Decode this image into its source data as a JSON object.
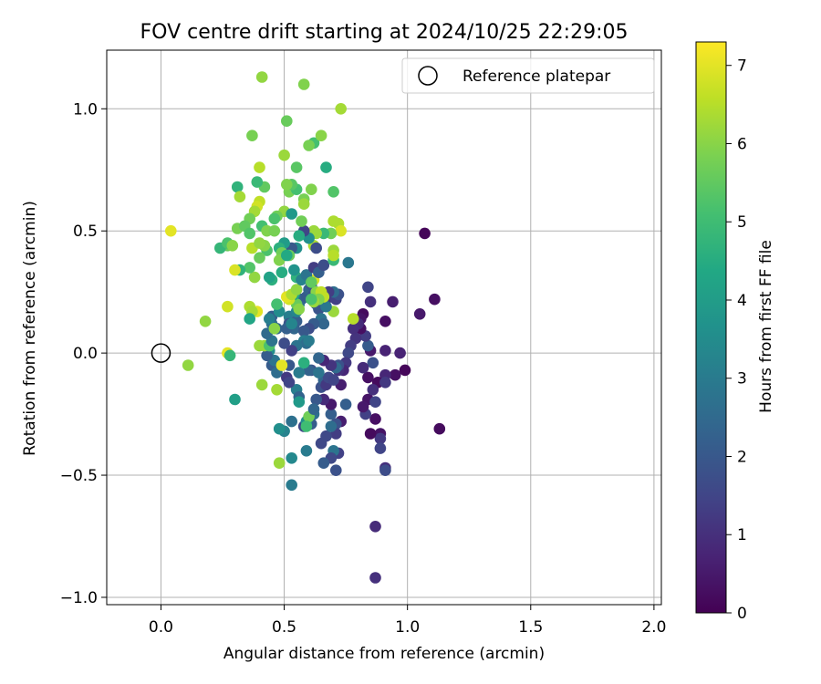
{
  "chart_data": {
    "type": "scatter",
    "title": "FOV centre drift starting at 2024/10/25 22:29:05",
    "xlabel": "Angular distance from reference (arcmin)",
    "ylabel": "Rotation from reference (arcmin)",
    "xlim": [
      -0.22,
      2.03
    ],
    "ylim": [
      -1.03,
      1.24
    ],
    "xticks": [
      {
        "value": 0.0,
        "label": "0.0"
      },
      {
        "value": 0.5,
        "label": "0.5"
      },
      {
        "value": 1.0,
        "label": "1.0"
      },
      {
        "value": 1.5,
        "label": "1.5"
      },
      {
        "value": 2.0,
        "label": "2.0"
      }
    ],
    "yticks": [
      {
        "value": -1.0,
        "label": "−1.0"
      },
      {
        "value": -0.5,
        "label": "−0.5"
      },
      {
        "value": 0.0,
        "label": "0.0"
      },
      {
        "value": 0.5,
        "label": "0.5"
      },
      {
        "value": 1.0,
        "label": "1.0"
      }
    ],
    "grid": true,
    "legend": {
      "placement": "top-right",
      "entries": [
        {
          "label": "Reference platepar",
          "marker": "open-circle"
        }
      ]
    },
    "reference_point": {
      "x": 0.0,
      "y": 0.0
    },
    "colorbar": {
      "label": "Hours from first FF file",
      "colormap": "viridis",
      "range": [
        0,
        7.3
      ],
      "ticks": [
        {
          "value": 0,
          "label": "0"
        },
        {
          "value": 1,
          "label": "1"
        },
        {
          "value": 2,
          "label": "2"
        },
        {
          "value": 3,
          "label": "3"
        },
        {
          "value": 4,
          "label": "4"
        },
        {
          "value": 5,
          "label": "5"
        },
        {
          "value": 6,
          "label": "6"
        },
        {
          "value": 7,
          "label": "7"
        }
      ]
    },
    "columns": [
      "x",
      "y",
      "hours"
    ],
    "points": [
      [
        1.07,
        0.49,
        0.1
      ],
      [
        1.11,
        0.22,
        0.3
      ],
      [
        1.05,
        0.16,
        0.5
      ],
      [
        0.94,
        0.21,
        0.6
      ],
      [
        0.97,
        0.0,
        0.7
      ],
      [
        0.99,
        -0.07,
        0.1
      ],
      [
        0.95,
        -0.09,
        0.3
      ],
      [
        1.13,
        -0.31,
        0.2
      ],
      [
        0.91,
        0.13,
        0.3
      ],
      [
        0.91,
        0.01,
        0.7
      ],
      [
        0.91,
        -0.09,
        0.8
      ],
      [
        0.88,
        -0.12,
        0.2
      ],
      [
        0.91,
        -0.12,
        1.2
      ],
      [
        0.91,
        -0.47,
        1.0
      ],
      [
        0.91,
        -0.48,
        1.7
      ],
      [
        0.89,
        -0.33,
        0.4
      ],
      [
        0.89,
        -0.35,
        1.2
      ],
      [
        0.89,
        -0.39,
        1.5
      ],
      [
        0.87,
        -0.71,
        0.9
      ],
      [
        0.87,
        -0.92,
        1.0
      ],
      [
        0.87,
        -0.27,
        0.3
      ],
      [
        0.85,
        -0.33,
        0.2
      ],
      [
        0.84,
        -0.19,
        0.4
      ],
      [
        0.83,
        -0.25,
        1.4
      ],
      [
        0.82,
        -0.22,
        0.5
      ],
      [
        0.87,
        -0.2,
        1.5
      ],
      [
        0.86,
        -0.15,
        1.0
      ],
      [
        0.84,
        -0.1,
        0.3
      ],
      [
        0.86,
        -0.04,
        1.8
      ],
      [
        0.82,
        -0.06,
        0.9
      ],
      [
        0.85,
        0.01,
        0.5
      ],
      [
        0.84,
        0.03,
        2.1
      ],
      [
        0.83,
        0.07,
        1.3
      ],
      [
        0.81,
        0.1,
        0.3
      ],
      [
        0.82,
        0.16,
        0.2
      ],
      [
        0.81,
        0.14,
        0.4
      ],
      [
        0.85,
        0.21,
        1.0
      ],
      [
        0.84,
        0.27,
        1.5
      ],
      [
        0.8,
        0.12,
        0.9
      ],
      [
        0.79,
        0.06,
        1.1
      ],
      [
        0.78,
        0.1,
        1.0
      ],
      [
        0.77,
        0.03,
        1.3
      ],
      [
        0.76,
        0.0,
        1.6
      ],
      [
        0.75,
        -0.04,
        1.2
      ],
      [
        0.74,
        -0.07,
        0.8
      ],
      [
        0.72,
        -0.07,
        1.0
      ],
      [
        0.72,
        -0.05,
        1.8
      ],
      [
        0.73,
        -0.13,
        0.6
      ],
      [
        0.75,
        -0.21,
        2.2
      ],
      [
        0.73,
        -0.28,
        0.6
      ],
      [
        0.71,
        -0.29,
        1.8
      ],
      [
        0.71,
        -0.33,
        1.3
      ],
      [
        0.72,
        -0.41,
        1.4
      ],
      [
        0.71,
        -0.48,
        1.8
      ],
      [
        0.7,
        -0.4,
        2.8
      ],
      [
        0.69,
        -0.43,
        1.6
      ],
      [
        0.66,
        -0.45,
        2.1
      ],
      [
        0.65,
        -0.37,
        1.6
      ],
      [
        0.67,
        -0.34,
        1.6
      ],
      [
        0.69,
        -0.3,
        2.6
      ],
      [
        0.69,
        -0.25,
        2.2
      ],
      [
        0.69,
        -0.21,
        0.5
      ],
      [
        0.66,
        -0.19,
        0.9
      ],
      [
        0.63,
        -0.19,
        2.0
      ],
      [
        0.62,
        -0.25,
        2.7
      ],
      [
        0.61,
        -0.29,
        2.1
      ],
      [
        0.58,
        -0.3,
        1.5
      ],
      [
        0.59,
        -0.28,
        3.6
      ],
      [
        0.6,
        -0.26,
        5.7
      ],
      [
        0.62,
        -0.23,
        2.4
      ],
      [
        0.65,
        -0.14,
        1.8
      ],
      [
        0.66,
        -0.11,
        2.3
      ],
      [
        0.67,
        -0.13,
        1.2
      ],
      [
        0.68,
        -0.1,
        1.6
      ],
      [
        0.7,
        -0.11,
        1.5
      ],
      [
        0.71,
        -0.06,
        2.5
      ],
      [
        0.69,
        -0.05,
        1.1
      ],
      [
        0.66,
        -0.03,
        0.8
      ],
      [
        0.64,
        -0.02,
        2.4
      ],
      [
        0.61,
        -0.07,
        1.8
      ],
      [
        0.6,
        -0.07,
        2.3
      ],
      [
        0.56,
        -0.08,
        3.0
      ],
      [
        0.55,
        -0.15,
        3.1
      ],
      [
        0.56,
        -0.18,
        2.3
      ],
      [
        0.53,
        -0.28,
        2.7
      ],
      [
        0.5,
        -0.32,
        3.2
      ],
      [
        0.48,
        -0.31,
        3.6
      ],
      [
        0.53,
        -0.43,
        3.4
      ],
      [
        0.59,
        -0.4,
        3.0
      ],
      [
        0.53,
        -0.54,
        3.0
      ],
      [
        0.48,
        -0.45,
        6.2
      ],
      [
        0.47,
        -0.15,
        6.3
      ],
      [
        0.41,
        -0.13,
        6.2
      ],
      [
        0.45,
        -0.05,
        2.1
      ],
      [
        0.47,
        -0.08,
        2.6
      ],
      [
        0.46,
        -0.03,
        2.8
      ],
      [
        0.44,
        0.01,
        3.5
      ],
      [
        0.43,
        -0.01,
        2.1
      ],
      [
        0.42,
        0.03,
        6.2
      ],
      [
        0.4,
        0.03,
        6.2
      ],
      [
        0.44,
        0.03,
        5.2
      ],
      [
        0.45,
        0.05,
        2.8
      ],
      [
        0.43,
        0.08,
        2.5
      ],
      [
        0.47,
        0.1,
        2.4
      ],
      [
        0.45,
        0.12,
        2.6
      ],
      [
        0.45,
        0.15,
        2.1
      ],
      [
        0.44,
        0.14,
        3.1
      ],
      [
        0.48,
        0.17,
        3.5
      ],
      [
        0.52,
        0.15,
        3.1
      ],
      [
        0.52,
        0.12,
        1.9
      ],
      [
        0.54,
        0.1,
        2.4
      ],
      [
        0.55,
        0.13,
        2.2
      ],
      [
        0.55,
        0.17,
        3.3
      ],
      [
        0.56,
        0.2,
        3.0
      ],
      [
        0.57,
        0.22,
        2.4
      ],
      [
        0.59,
        0.23,
        2.1
      ],
      [
        0.6,
        0.26,
        2.3
      ],
      [
        0.61,
        0.28,
        1.8
      ],
      [
        0.62,
        0.24,
        1.9
      ],
      [
        0.63,
        0.2,
        2.1
      ],
      [
        0.64,
        0.18,
        1.9
      ],
      [
        0.65,
        0.14,
        2.8
      ],
      [
        0.66,
        0.12,
        2.4
      ],
      [
        0.62,
        0.12,
        2.1
      ],
      [
        0.6,
        0.1,
        1.7
      ],
      [
        0.58,
        0.09,
        2.0
      ],
      [
        0.58,
        0.05,
        3.1
      ],
      [
        0.59,
        0.04,
        2.6
      ],
      [
        0.55,
        0.03,
        2.8
      ],
      [
        0.53,
        0.01,
        1.4
      ],
      [
        0.52,
        -0.05,
        2.0
      ],
      [
        0.51,
        -0.1,
        1.2
      ],
      [
        0.52,
        -0.12,
        1.5
      ],
      [
        0.5,
        0.04,
        1.7
      ],
      [
        0.51,
        0.1,
        2.2
      ],
      [
        0.53,
        0.12,
        3.3
      ],
      [
        0.67,
        0.22,
        1.2
      ],
      [
        0.7,
        0.17,
        6.2
      ],
      [
        0.71,
        0.22,
        1.4
      ],
      [
        0.72,
        0.24,
        1.8
      ],
      [
        0.7,
        0.25,
        2.6
      ],
      [
        0.68,
        0.25,
        1.3
      ],
      [
        0.67,
        0.19,
        2.9
      ],
      [
        0.66,
        0.23,
        6.6
      ],
      [
        0.63,
        0.25,
        6.0
      ],
      [
        0.62,
        0.3,
        6.9
      ],
      [
        0.65,
        0.25,
        6.6
      ],
      [
        0.64,
        0.22,
        5.9
      ],
      [
        0.62,
        0.21,
        6.2
      ],
      [
        0.61,
        0.22,
        5.2
      ],
      [
        0.55,
        0.2,
        5.6
      ],
      [
        0.56,
        0.18,
        6.0
      ],
      [
        0.54,
        0.24,
        4.3
      ],
      [
        0.52,
        0.22,
        6.8
      ],
      [
        0.51,
        0.23,
        7.0
      ],
      [
        0.53,
        0.24,
        6.4
      ],
      [
        0.55,
        0.26,
        6.1
      ],
      [
        0.55,
        0.31,
        4.7
      ],
      [
        0.54,
        0.34,
        3.7
      ],
      [
        0.57,
        0.3,
        3.2
      ],
      [
        0.59,
        0.32,
        2.8
      ],
      [
        0.61,
        0.29,
        5.5
      ],
      [
        0.62,
        0.35,
        1.3
      ],
      [
        0.64,
        0.33,
        2.2
      ],
      [
        0.66,
        0.36,
        1.7
      ],
      [
        0.7,
        0.38,
        4.9
      ],
      [
        0.7,
        0.42,
        6.2
      ],
      [
        0.7,
        0.4,
        6.5
      ],
      [
        0.72,
        0.53,
        6.4
      ],
      [
        0.7,
        0.54,
        6.4
      ],
      [
        0.73,
        0.5,
        6.9
      ],
      [
        0.69,
        0.49,
        5.7
      ],
      [
        0.66,
        0.49,
        4.9
      ],
      [
        0.63,
        0.49,
        6.2
      ],
      [
        0.62,
        0.5,
        6.2
      ],
      [
        0.62,
        0.44,
        6.4
      ],
      [
        0.63,
        0.43,
        1.7
      ],
      [
        0.6,
        0.47,
        3.6
      ],
      [
        0.58,
        0.5,
        1.5
      ],
      [
        0.57,
        0.54,
        5.7
      ],
      [
        0.56,
        0.48,
        4.5
      ],
      [
        0.55,
        0.43,
        3.6
      ],
      [
        0.53,
        0.43,
        2.0
      ],
      [
        0.52,
        0.4,
        5.6
      ],
      [
        0.5,
        0.45,
        4.0
      ],
      [
        0.48,
        0.43,
        4.6
      ],
      [
        0.49,
        0.41,
        5.7
      ],
      [
        0.48,
        0.38,
        5.9
      ],
      [
        0.49,
        0.33,
        4.5
      ],
      [
        0.43,
        0.42,
        5.2
      ],
      [
        0.42,
        0.44,
        6.0
      ],
      [
        0.41,
        0.52,
        5.1
      ],
      [
        0.43,
        0.5,
        5.9
      ],
      [
        0.46,
        0.5,
        5.8
      ],
      [
        0.5,
        0.58,
        6.1
      ],
      [
        0.53,
        0.57,
        3.9
      ],
      [
        0.52,
        0.66,
        5.8
      ],
      [
        0.55,
        0.67,
        5.1
      ],
      [
        0.53,
        0.69,
        5.4
      ],
      [
        0.58,
        0.63,
        5.8
      ],
      [
        0.58,
        0.61,
        6.2
      ],
      [
        0.61,
        0.67,
        5.9
      ],
      [
        0.67,
        0.76,
        4.5
      ],
      [
        0.7,
        0.66,
        5.3
      ],
      [
        0.73,
        1.0,
        6.3
      ],
      [
        0.62,
        0.86,
        5.1
      ],
      [
        0.6,
        0.85,
        5.8
      ],
      [
        0.65,
        0.89,
        6.0
      ],
      [
        0.58,
        1.1,
        5.9
      ],
      [
        0.55,
        0.76,
        5.4
      ],
      [
        0.51,
        0.95,
        5.6
      ],
      [
        0.5,
        0.81,
        6.2
      ],
      [
        0.51,
        0.69,
        5.9
      ],
      [
        0.47,
        0.56,
        5.7
      ],
      [
        0.46,
        0.55,
        5.2
      ],
      [
        0.42,
        0.68,
        5.5
      ],
      [
        0.4,
        0.62,
        6.6
      ],
      [
        0.39,
        0.6,
        6.8
      ],
      [
        0.38,
        0.58,
        6.3
      ],
      [
        0.36,
        0.55,
        5.7
      ],
      [
        0.39,
        0.7,
        4.9
      ],
      [
        0.4,
        0.76,
        6.5
      ],
      [
        0.37,
        0.89,
        5.8
      ],
      [
        0.41,
        1.13,
        6.1
      ],
      [
        0.31,
        0.68,
        4.7
      ],
      [
        0.32,
        0.64,
        6.3
      ],
      [
        0.31,
        0.51,
        5.8
      ],
      [
        0.34,
        0.52,
        5.5
      ],
      [
        0.36,
        0.49,
        5.3
      ],
      [
        0.37,
        0.43,
        6.5
      ],
      [
        0.4,
        0.45,
        6.1
      ],
      [
        0.4,
        0.39,
        5.6
      ],
      [
        0.38,
        0.31,
        6.1
      ],
      [
        0.36,
        0.35,
        5.3
      ],
      [
        0.32,
        0.34,
        4.7
      ],
      [
        0.3,
        0.34,
        6.9
      ],
      [
        0.27,
        0.44,
        5.6
      ],
      [
        0.24,
        0.43,
        4.8
      ],
      [
        0.27,
        0.45,
        5.2
      ],
      [
        0.29,
        0.44,
        6.0
      ],
      [
        0.36,
        0.19,
        6.4
      ],
      [
        0.39,
        0.17,
        7.0
      ],
      [
        0.37,
        0.17,
        6.3
      ],
      [
        0.36,
        0.14,
        4.3
      ],
      [
        0.27,
        0.19,
        6.8
      ],
      [
        0.18,
        0.13,
        6.1
      ],
      [
        0.27,
        0.0,
        7.0
      ],
      [
        0.28,
        -0.01,
        4.8
      ],
      [
        0.3,
        -0.19,
        4.1
      ],
      [
        0.11,
        -0.05,
        6.1
      ],
      [
        0.04,
        0.5,
        7.0
      ],
      [
        0.45,
        0.3,
        4.6
      ],
      [
        0.58,
        -0.04,
        4.6
      ],
      [
        0.59,
        -0.3,
        5.0
      ],
      [
        0.46,
        0.1,
        6.0
      ],
      [
        0.49,
        -0.05,
        7.0
      ],
      [
        0.44,
        0.31,
        4.2
      ],
      [
        0.6,
        0.05,
        3.0
      ],
      [
        0.64,
        -0.08,
        2.8
      ],
      [
        0.47,
        0.2,
        5.1
      ],
      [
        0.76,
        0.37,
        2.9
      ],
      [
        0.56,
        -0.2,
        3.9
      ],
      [
        0.78,
        0.14,
        6.5
      ],
      [
        0.51,
        0.4,
        4.4
      ]
    ]
  }
}
